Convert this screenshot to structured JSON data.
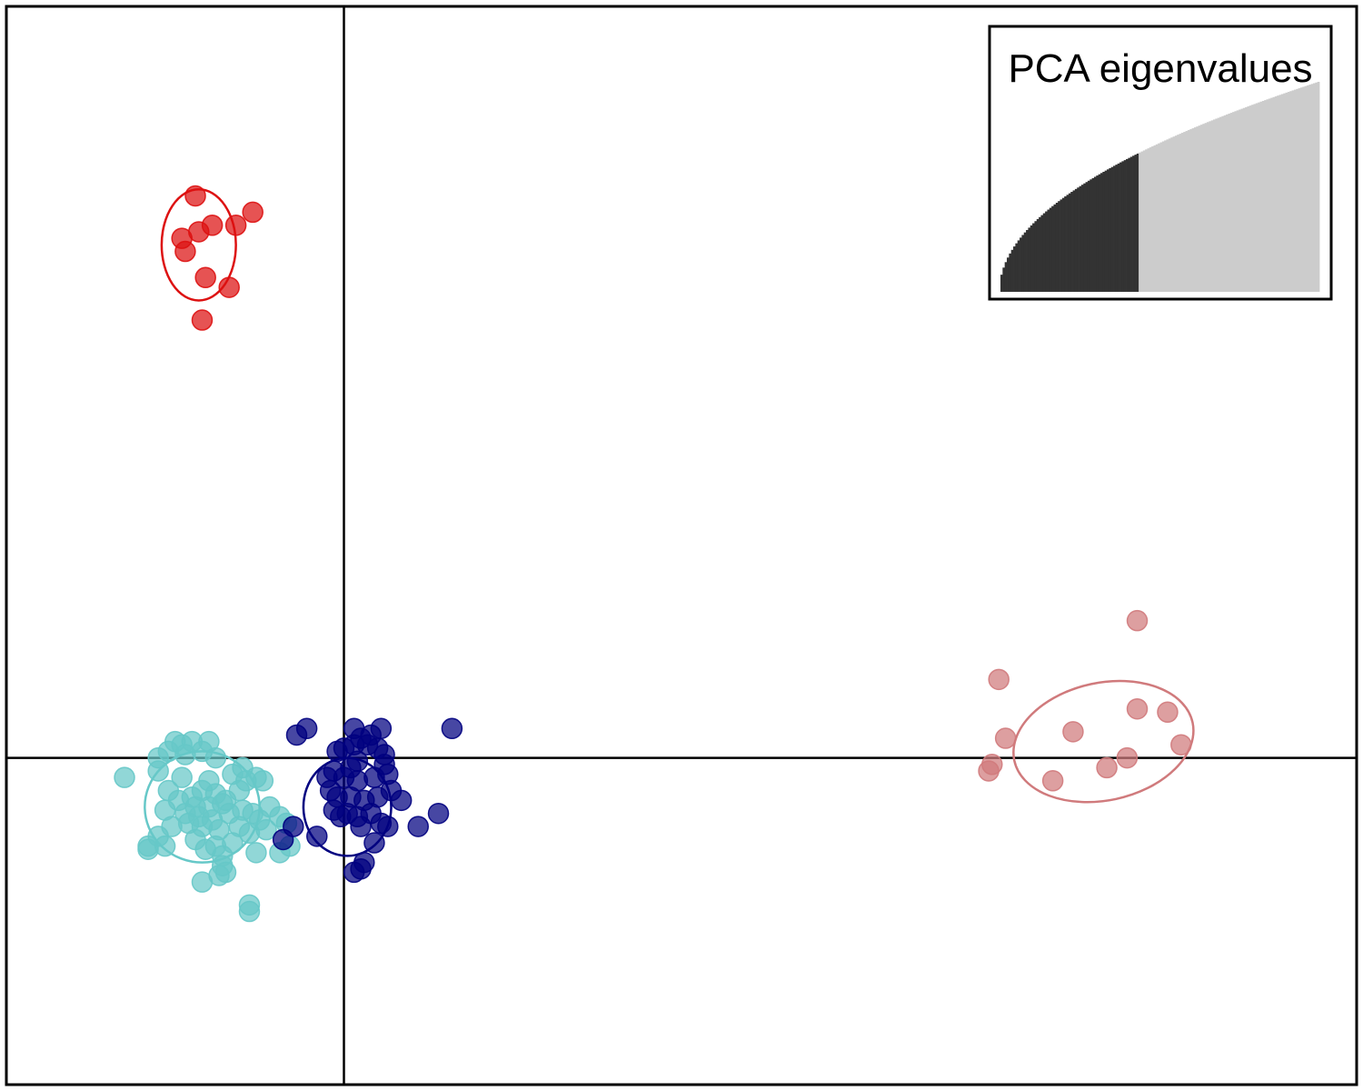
{
  "chart_data": [
    {
      "type": "scatter",
      "title": "",
      "xlabel": "",
      "ylabel": "",
      "xlim": [
        -1.0,
        3.0
      ],
      "ylim": [
        -1.0,
        2.3
      ],
      "axis_lines": {
        "x": 0,
        "y": 0
      },
      "ticks_shown": false,
      "grid": false,
      "colors": {
        "cyan": "#66c8c8",
        "navy": "#000080",
        "red": "#dd1111",
        "pink": "#d07a7c"
      },
      "series": [
        {
          "color": "#66c8c8",
          "ellipse": {
            "cx": -0.42,
            "cy": -0.15,
            "rx": 0.17,
            "ry": 0.17,
            "angle_deg": 0
          },
          "points": [
            [
              -0.65,
              -0.06
            ],
            [
              -0.5,
              0.05
            ],
            [
              -0.48,
              0.04
            ],
            [
              -0.45,
              0.05
            ],
            [
              -0.4,
              0.05
            ],
            [
              -0.52,
              0.02
            ],
            [
              -0.38,
              0.0
            ],
            [
              -0.47,
              0.01
            ],
            [
              -0.55,
              0.0
            ],
            [
              -0.42,
              0.02
            ],
            [
              -0.3,
              -0.03
            ],
            [
              -0.33,
              -0.05
            ],
            [
              -0.26,
              -0.06
            ],
            [
              -0.29,
              -0.07
            ],
            [
              -0.4,
              -0.07
            ],
            [
              -0.48,
              -0.06
            ],
            [
              -0.52,
              -0.1
            ],
            [
              -0.45,
              -0.12
            ],
            [
              -0.42,
              -0.1
            ],
            [
              -0.38,
              -0.11
            ],
            [
              -0.35,
              -0.13
            ],
            [
              -0.49,
              -0.13
            ],
            [
              -0.44,
              -0.15
            ],
            [
              -0.4,
              -0.15
            ],
            [
              -0.36,
              -0.14
            ],
            [
              -0.53,
              -0.16
            ],
            [
              -0.47,
              -0.17
            ],
            [
              -0.43,
              -0.18
            ],
            [
              -0.39,
              -0.19
            ],
            [
              -0.34,
              -0.17
            ],
            [
              -0.3,
              -0.16
            ],
            [
              -0.27,
              -0.17
            ],
            [
              -0.22,
              -0.15
            ],
            [
              -0.25,
              -0.19
            ],
            [
              -0.31,
              -0.21
            ],
            [
              -0.37,
              -0.22
            ],
            [
              -0.42,
              -0.21
            ],
            [
              -0.46,
              -0.2
            ],
            [
              -0.51,
              -0.21
            ],
            [
              -0.55,
              -0.24
            ],
            [
              -0.58,
              -0.27
            ],
            [
              -0.53,
              -0.27
            ],
            [
              -0.44,
              -0.25
            ],
            [
              -0.38,
              -0.27
            ],
            [
              -0.33,
              -0.26
            ],
            [
              -0.28,
              -0.23
            ],
            [
              -0.23,
              -0.22
            ],
            [
              -0.19,
              -0.18
            ],
            [
              -0.17,
              -0.2
            ],
            [
              -0.16,
              -0.27
            ],
            [
              -0.19,
              -0.29
            ],
            [
              -0.26,
              -0.29
            ],
            [
              -0.36,
              -0.3
            ],
            [
              -0.41,
              -0.28
            ],
            [
              -0.58,
              -0.28
            ],
            [
              -0.36,
              -0.33
            ],
            [
              -0.35,
              -0.35
            ],
            [
              -0.37,
              -0.36
            ],
            [
              -0.42,
              -0.38
            ],
            [
              -0.28,
              -0.45
            ],
            [
              -0.28,
              -0.47
            ],
            [
              -0.31,
              -0.1
            ],
            [
              -0.24,
              -0.07
            ],
            [
              -0.55,
              -0.04
            ]
          ]
        },
        {
          "color": "#000080",
          "ellipse": {
            "cx": 0.01,
            "cy": -0.15,
            "rx": 0.13,
            "ry": 0.15,
            "angle_deg": 0
          },
          "points": [
            [
              -0.14,
              0.07
            ],
            [
              -0.11,
              0.09
            ],
            [
              0.03,
              0.09
            ],
            [
              0.11,
              0.09
            ],
            [
              0.32,
              0.09
            ],
            [
              0.05,
              0.06
            ],
            [
              0.08,
              0.07
            ],
            [
              0.03,
              0.04
            ],
            [
              0.0,
              0.03
            ],
            [
              -0.02,
              0.02
            ],
            [
              0.07,
              0.04
            ],
            [
              0.1,
              0.03
            ],
            [
              0.12,
              0.01
            ],
            [
              0.04,
              -0.01
            ],
            [
              0.02,
              -0.03
            ],
            [
              -0.03,
              -0.04
            ],
            [
              -0.05,
              -0.06
            ],
            [
              0.0,
              -0.06
            ],
            [
              0.04,
              -0.07
            ],
            [
              0.09,
              -0.06
            ],
            [
              0.13,
              -0.05
            ],
            [
              -0.04,
              -0.1
            ],
            [
              -0.02,
              -0.12
            ],
            [
              0.02,
              -0.12
            ],
            [
              0.06,
              -0.13
            ],
            [
              0.1,
              -0.12
            ],
            [
              0.14,
              -0.1
            ],
            [
              0.17,
              -0.13
            ],
            [
              -0.03,
              -0.16
            ],
            [
              -0.01,
              -0.18
            ],
            [
              0.01,
              -0.17
            ],
            [
              0.04,
              -0.18
            ],
            [
              0.08,
              -0.17
            ],
            [
              0.11,
              -0.2
            ],
            [
              0.13,
              -0.21
            ],
            [
              -0.08,
              -0.24
            ],
            [
              -0.18,
              -0.25
            ],
            [
              -0.15,
              -0.21
            ],
            [
              0.05,
              -0.21
            ],
            [
              0.22,
              -0.21
            ],
            [
              0.28,
              -0.17
            ],
            [
              0.09,
              -0.26
            ],
            [
              0.06,
              -0.32
            ],
            [
              0.05,
              -0.34
            ],
            [
              0.03,
              -0.35
            ],
            [
              0.12,
              -0.02
            ]
          ]
        },
        {
          "color": "#dd1111",
          "ellipse": {
            "cx": -0.43,
            "cy": 1.57,
            "rx": 0.11,
            "ry": 0.17,
            "angle_deg": 0
          },
          "points": [
            [
              -0.44,
              1.72
            ],
            [
              -0.27,
              1.67
            ],
            [
              -0.39,
              1.63
            ],
            [
              -0.32,
              1.63
            ],
            [
              -0.43,
              1.61
            ],
            [
              -0.48,
              1.59
            ],
            [
              -0.47,
              1.55
            ],
            [
              -0.41,
              1.47
            ],
            [
              -0.34,
              1.44
            ],
            [
              -0.42,
              1.34
            ]
          ]
        },
        {
          "color": "#d07a7c",
          "ellipse": {
            "cx": 2.25,
            "cy": 0.05,
            "rx": 0.27,
            "ry": 0.18,
            "angle_deg": -12
          },
          "points": [
            [
              2.35,
              0.42
            ],
            [
              1.94,
              0.24
            ],
            [
              2.35,
              0.15
            ],
            [
              2.44,
              0.14
            ],
            [
              2.16,
              0.08
            ],
            [
              1.96,
              0.06
            ],
            [
              2.48,
              0.04
            ],
            [
              2.32,
              0.0
            ],
            [
              1.92,
              -0.02
            ],
            [
              2.26,
              -0.03
            ],
            [
              1.91,
              -0.04
            ],
            [
              2.1,
              -0.07
            ]
          ]
        }
      ]
    },
    {
      "type": "bar",
      "title": "PCA eigenvalues",
      "n_bars": 150,
      "n_retained": 65,
      "retained_color": "#333333",
      "other_color": "#cccccc",
      "shape": "sqrt"
    }
  ]
}
